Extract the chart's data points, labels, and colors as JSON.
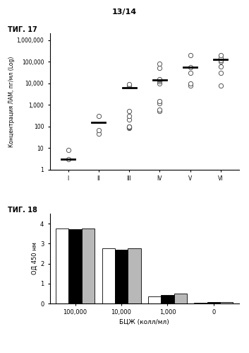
{
  "page_label": "13/14",
  "fig17_label": "ΤИГ. 17",
  "fig18_label": "ΤИГ. 18",
  "fig17": {
    "ylabel": "Концентрация ЛАМ, пг/мл (Log)",
    "xtick_labels": [
      "I",
      "II",
      "III",
      "IV",
      "V",
      "VI"
    ],
    "ytick_labels": [
      "1",
      "10",
      "100",
      "1,000",
      "10,000",
      "100,000",
      "1,000,000"
    ],
    "ytick_values": [
      1,
      10,
      100,
      1000,
      10000,
      100000,
      1000000
    ],
    "groups": {
      "I": {
        "points": [
          3,
          8
        ],
        "median": 3
      },
      "II": {
        "points": [
          45,
          65,
          300
        ],
        "median": 150
      },
      "III": {
        "points": [
          80,
          90,
          100,
          100,
          200,
          300,
          500,
          8000,
          9000
        ],
        "median": 6000
      },
      "IV": {
        "points": [
          500,
          600,
          1200,
          1500,
          10000,
          12000,
          14000,
          15000,
          50000,
          80000
        ],
        "median": 14000
      },
      "V": {
        "points": [
          8000,
          10000,
          30000,
          55000,
          200000
        ],
        "median": 55000
      },
      "VI": {
        "points": [
          8000,
          30000,
          60000,
          100000,
          120000,
          150000,
          200000
        ],
        "median": 130000
      }
    }
  },
  "fig18": {
    "xlabel": "БЦЖ (колл/мл)",
    "ylabel": "ОД 450 нм",
    "xtick_labels": [
      "100,000",
      "10,000",
      "1,000",
      "0"
    ],
    "ylim": [
      0,
      4.5
    ],
    "ytick_values": [
      0,
      1,
      2,
      3,
      4
    ],
    "bar_groups": [
      {
        "x": 0,
        "white": 3.75,
        "black": 3.72,
        "gray": 3.75
      },
      {
        "x": 1,
        "white": 2.75,
        "black": 2.7,
        "gray": 2.75
      },
      {
        "x": 2,
        "white": 0.35,
        "black": 0.42,
        "gray": 0.5
      },
      {
        "x": 3,
        "white": 0.05,
        "black": 0.08,
        "gray": 0.06
      }
    ],
    "bar_width": 0.28,
    "colors": [
      "white",
      "black",
      "#b8b8b8"
    ]
  }
}
